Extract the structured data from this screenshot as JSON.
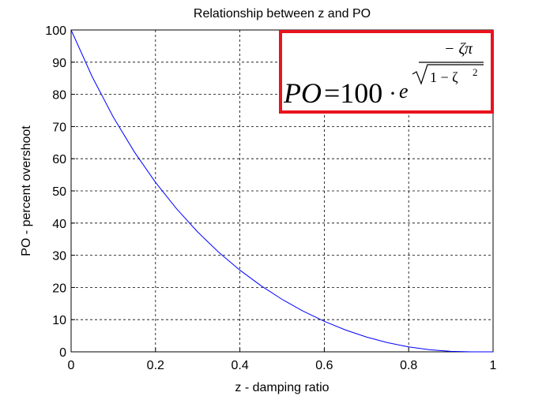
{
  "chart_data": {
    "type": "line",
    "title": "Relationship between z and PO",
    "xlabel": "z - damping ratio",
    "ylabel": "PO - percent overshoot",
    "x": [
      0,
      0.05,
      0.1,
      0.15,
      0.2,
      0.25,
      0.3,
      0.35,
      0.4,
      0.45,
      0.5,
      0.55,
      0.6,
      0.65,
      0.7,
      0.75,
      0.8,
      0.85,
      0.9,
      0.95,
      1
    ],
    "values": [
      100,
      85.45,
      72.92,
      62.09,
      52.66,
      44.43,
      37.23,
      30.92,
      25.38,
      20.54,
      16.3,
      12.63,
      9.48,
      6.81,
      4.6,
      2.84,
      1.52,
      0.63,
      0.15,
      0.01,
      0
    ],
    "color": "#0000ff",
    "xlim": [
      0,
      1
    ],
    "xticks": [
      0,
      0.2,
      0.4,
      0.6,
      0.8,
      1
    ],
    "ylim": [
      0,
      100
    ],
    "yticks": [
      0,
      10,
      20,
      30,
      40,
      50,
      60,
      70,
      80,
      90,
      100
    ],
    "grid": true,
    "formula": {
      "lhs": "PO",
      "equals": "=100",
      "dot": "·",
      "base": "e",
      "numerator": "− ζπ",
      "denominator": "1 − ζ",
      "power": "2"
    },
    "formula_box_color": "#e8141e"
  }
}
